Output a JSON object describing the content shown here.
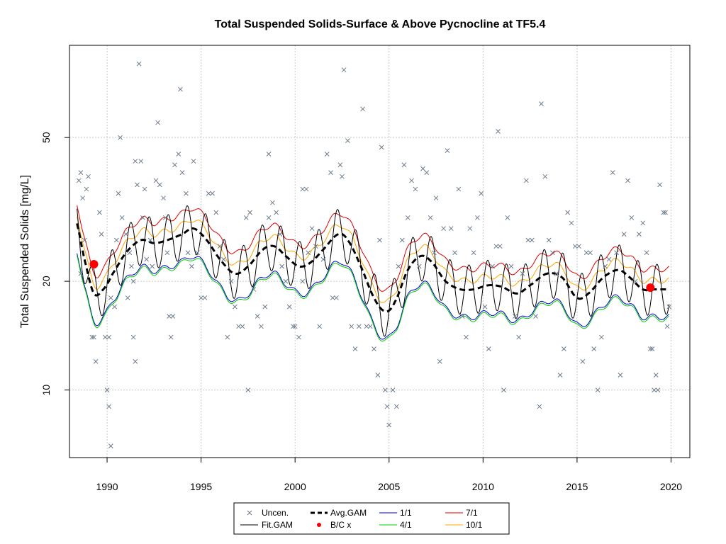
{
  "chart_data": {
    "type": "scatter",
    "title": "Total Suspended Solids-Surface & Above Pycnocline at TF5.4",
    "xlabel": "",
    "ylabel": "Total Suspended Solids [mg/L]",
    "y_scale": "log",
    "xlim": [
      1988.0,
      2021.0
    ],
    "ylim": [
      6.5,
      90
    ],
    "x_ticks": [
      1990,
      1995,
      2000,
      2005,
      2010,
      2015,
      2020
    ],
    "y_ticks": [
      10,
      20,
      50
    ],
    "grid": true,
    "legend_position": "bottom",
    "legend": [
      "Uncen.",
      "Fit.GAM",
      "Avg.GAM",
      "B/C x",
      "1/1",
      "4/1",
      "7/1",
      "10/1"
    ],
    "colors": {
      "uncen": "#6b7b8c",
      "fit": "#000000",
      "avg": "#000000",
      "bc": "#ff0000",
      "q11": "#0000cd",
      "q41": "#00cc00",
      "q71": "#dd0000",
      "q101": "#ffa500"
    },
    "series": [
      {
        "name": "Uncen.",
        "points": [
          [
            1988.5,
            38
          ],
          [
            1988.6,
            40
          ],
          [
            1988.7,
            34
          ],
          [
            1988.9,
            36
          ],
          [
            1988.6,
            21
          ],
          [
            1988.8,
            26
          ],
          [
            1989.0,
            39
          ],
          [
            1989.2,
            14
          ],
          [
            1989.3,
            14
          ],
          [
            1989.4,
            12
          ],
          [
            1989.6,
            31
          ],
          [
            1989.7,
            27
          ],
          [
            1989.9,
            14
          ],
          [
            1990.0,
            10
          ],
          [
            1990.1,
            14
          ],
          [
            1990.2,
            18
          ],
          [
            1990.4,
            17
          ],
          [
            1990.1,
            9
          ],
          [
            1990.2,
            7
          ],
          [
            1990.5,
            26
          ],
          [
            1990.6,
            35
          ],
          [
            1990.7,
            50
          ],
          [
            1990.8,
            30
          ],
          [
            1991.0,
            27
          ],
          [
            1991.2,
            24
          ],
          [
            1991.3,
            22
          ],
          [
            1991.4,
            20
          ],
          [
            1991.1,
            18
          ],
          [
            1991.5,
            43
          ],
          [
            1991.6,
            37
          ],
          [
            1991.4,
            14
          ],
          [
            1991.5,
            12
          ],
          [
            1991.7,
            80
          ],
          [
            1991.8,
            43
          ],
          [
            1991.9,
            30
          ],
          [
            1992.0,
            36
          ],
          [
            1992.1,
            23
          ],
          [
            1992.3,
            26
          ],
          [
            1992.4,
            22
          ],
          [
            1992.6,
            38
          ],
          [
            1992.8,
            37
          ],
          [
            1992.7,
            55
          ],
          [
            1993.0,
            34
          ],
          [
            1993.1,
            30
          ],
          [
            1993.2,
            24
          ],
          [
            1993.3,
            16
          ],
          [
            1993.4,
            14
          ],
          [
            1993.5,
            16
          ],
          [
            1993.6,
            42
          ],
          [
            1993.8,
            45
          ],
          [
            1993.9,
            68
          ],
          [
            1994.0,
            40
          ],
          [
            1994.2,
            35
          ],
          [
            1994.3,
            24
          ],
          [
            1994.5,
            22
          ],
          [
            1994.6,
            43
          ],
          [
            1994.8,
            24
          ],
          [
            1995.0,
            18
          ],
          [
            1995.2,
            18
          ],
          [
            1995.4,
            35
          ],
          [
            1995.6,
            35
          ],
          [
            1995.8,
            31
          ],
          [
            1996.0,
            25
          ],
          [
            1996.2,
            23
          ],
          [
            1996.4,
            14
          ],
          [
            1996.6,
            20
          ],
          [
            1996.8,
            17
          ],
          [
            1997.0,
            15
          ],
          [
            1997.2,
            15
          ],
          [
            1997.4,
            30
          ],
          [
            1997.6,
            31
          ],
          [
            1997.5,
            10
          ],
          [
            1997.8,
            19
          ],
          [
            1998.0,
            16
          ],
          [
            1998.2,
            15
          ],
          [
            1998.4,
            17
          ],
          [
            1998.6,
            30
          ],
          [
            1998.8,
            33
          ],
          [
            1998.6,
            45
          ],
          [
            1999.0,
            31
          ],
          [
            1999.2,
            27
          ],
          [
            1999.3,
            22
          ],
          [
            1999.5,
            20
          ],
          [
            1999.7,
            17
          ],
          [
            1999.9,
            15
          ],
          [
            2000.0,
            15
          ],
          [
            2000.2,
            14
          ],
          [
            2000.4,
            36
          ],
          [
            2000.6,
            36
          ],
          [
            2000.4,
            20
          ],
          [
            2000.7,
            24
          ],
          [
            2000.9,
            28
          ],
          [
            2001.1,
            25
          ],
          [
            2001.3,
            15
          ],
          [
            2001.5,
            23
          ],
          [
            2001.7,
            45
          ],
          [
            2001.9,
            40
          ],
          [
            2002.0,
            18
          ],
          [
            2002.2,
            18
          ],
          [
            2002.4,
            42
          ],
          [
            2002.5,
            39
          ],
          [
            2002.6,
            77
          ],
          [
            2002.8,
            49
          ],
          [
            2003.0,
            15
          ],
          [
            2003.2,
            13
          ],
          [
            2003.4,
            15
          ],
          [
            2003.6,
            60
          ],
          [
            2003.8,
            15
          ],
          [
            2004.0,
            15
          ],
          [
            2004.2,
            13
          ],
          [
            2004.4,
            11
          ],
          [
            2004.5,
            26
          ],
          [
            2004.6,
            47
          ],
          [
            2004.8,
            10
          ],
          [
            2004.9,
            9
          ],
          [
            2005.0,
            8
          ],
          [
            2005.2,
            10
          ],
          [
            2005.4,
            9
          ],
          [
            2005.5,
            22
          ],
          [
            2005.7,
            26
          ],
          [
            2005.8,
            42
          ],
          [
            2006.0,
            30
          ],
          [
            2006.2,
            38
          ],
          [
            2006.4,
            36
          ],
          [
            2006.6,
            22
          ],
          [
            2006.8,
            41
          ],
          [
            2007.0,
            40
          ],
          [
            2007.2,
            30
          ],
          [
            2007.4,
            24
          ],
          [
            2007.5,
            34
          ],
          [
            2007.7,
            12
          ],
          [
            2007.9,
            28
          ],
          [
            2008.1,
            46
          ],
          [
            2008.3,
            28
          ],
          [
            2008.5,
            24
          ],
          [
            2008.7,
            36
          ],
          [
            2008.9,
            16
          ],
          [
            2009.1,
            14
          ],
          [
            2009.3,
            28
          ],
          [
            2009.5,
            24
          ],
          [
            2009.7,
            30
          ],
          [
            2009.9,
            35
          ],
          [
            2010.1,
            17
          ],
          [
            2010.3,
            13
          ],
          [
            2010.5,
            22
          ],
          [
            2010.7,
            25
          ],
          [
            2010.9,
            25
          ],
          [
            2010.8,
            52
          ],
          [
            2011.1,
            10
          ],
          [
            2011.3,
            30
          ],
          [
            2011.5,
            22
          ],
          [
            2011.7,
            16
          ],
          [
            2011.9,
            14
          ],
          [
            2012.1,
            21
          ],
          [
            2012.3,
            38
          ],
          [
            2012.4,
            26
          ],
          [
            2012.6,
            26
          ],
          [
            2012.8,
            16
          ],
          [
            2013.0,
            9
          ],
          [
            2013.1,
            62
          ],
          [
            2013.3,
            39
          ],
          [
            2013.5,
            26
          ],
          [
            2013.7,
            24
          ],
          [
            2013.9,
            21
          ],
          [
            2014.1,
            11
          ],
          [
            2014.3,
            13
          ],
          [
            2014.5,
            31
          ],
          [
            2014.7,
            29
          ],
          [
            2014.9,
            25
          ],
          [
            2015.1,
            25
          ],
          [
            2015.3,
            12
          ],
          [
            2015.5,
            24
          ],
          [
            2015.7,
            24
          ],
          [
            2015.9,
            13
          ],
          [
            2016.1,
            10
          ],
          [
            2016.3,
            14
          ],
          [
            2016.5,
            22
          ],
          [
            2016.7,
            23
          ],
          [
            2016.9,
            40
          ],
          [
            2017.1,
            24
          ],
          [
            2017.3,
            11
          ],
          [
            2017.5,
            27
          ],
          [
            2017.7,
            38
          ],
          [
            2017.9,
            30
          ],
          [
            2018.1,
            20
          ],
          [
            2018.3,
            27
          ],
          [
            2018.5,
            29
          ],
          [
            2018.7,
            24
          ],
          [
            2018.9,
            13
          ],
          [
            2019.0,
            13
          ],
          [
            2019.1,
            10
          ],
          [
            2019.2,
            11
          ],
          [
            2019.3,
            10
          ],
          [
            2019.4,
            37
          ],
          [
            2019.6,
            31
          ],
          [
            2019.7,
            31
          ],
          [
            2019.8,
            15
          ],
          [
            2019.9,
            17
          ]
        ]
      },
      {
        "name": "Fit.GAM",
        "model": "seasonal",
        "start": 1988.4,
        "end": 2019.9
      },
      {
        "name": "Avg.GAM",
        "model": "trend",
        "start": 1988.4,
        "end": 2019.9
      },
      {
        "name": "B/C x",
        "points": [
          [
            1989.3,
            22.3
          ],
          [
            2018.9,
            19.2
          ]
        ]
      },
      {
        "name": "1/1",
        "model": "quantile",
        "start": 1988.4,
        "end": 2019.9
      },
      {
        "name": "4/1",
        "model": "quantile",
        "start": 1988.4,
        "end": 2019.9
      },
      {
        "name": "7/1",
        "model": "quantile",
        "start": 1988.4,
        "end": 2019.9
      },
      {
        "name": "10/1",
        "model": "quantile",
        "start": 1988.4,
        "end": 2019.9
      }
    ],
    "trend_knots": [
      [
        1988.3,
        30
      ],
      [
        1988.8,
        23
      ],
      [
        1989.3,
        18.5
      ],
      [
        1989.8,
        19
      ],
      [
        1990.3,
        21
      ],
      [
        1991.0,
        24
      ],
      [
        1991.8,
        26
      ],
      [
        1992.5,
        25.5
      ],
      [
        1993.2,
        26
      ],
      [
        1994.0,
        27
      ],
      [
        1994.6,
        28
      ],
      [
        1995.3,
        26
      ],
      [
        1996.0,
        23
      ],
      [
        1996.8,
        21
      ],
      [
        1997.5,
        22
      ],
      [
        1998.3,
        24.5
      ],
      [
        1998.9,
        25
      ],
      [
        1999.5,
        23.5
      ],
      [
        2000.2,
        22
      ],
      [
        2000.8,
        22.5
      ],
      [
        2001.5,
        24.5
      ],
      [
        2002.3,
        27
      ],
      [
        2002.8,
        26
      ],
      [
        2003.5,
        22
      ],
      [
        2004.2,
        18
      ],
      [
        2004.8,
        16.5
      ],
      [
        2005.3,
        17.5
      ],
      [
        2006.0,
        21.5
      ],
      [
        2006.7,
        23.5
      ],
      [
        2007.3,
        22.5
      ],
      [
        2008.0,
        20
      ],
      [
        2008.8,
        19
      ],
      [
        2009.5,
        19
      ],
      [
        2010.3,
        19.5
      ],
      [
        2011.0,
        19.3
      ],
      [
        2011.8,
        18.5
      ],
      [
        2012.5,
        19.5
      ],
      [
        2013.4,
        21
      ],
      [
        2014.2,
        20.5
      ],
      [
        2015.0,
        18
      ],
      [
        2015.6,
        18.5
      ],
      [
        2016.4,
        20.5
      ],
      [
        2017.2,
        21.5
      ],
      [
        2017.8,
        20.5
      ],
      [
        2018.5,
        19
      ],
      [
        2019.2,
        19
      ],
      [
        2019.9,
        19
      ]
    ],
    "seasonal_amplitude": 0.16,
    "seasonal_peak_month_fraction": 0.25,
    "quantile_offsets": {
      "1/1": 0.84,
      "4/1": 0.83,
      "7/1": 1.14,
      "10/1": 1.06
    }
  }
}
